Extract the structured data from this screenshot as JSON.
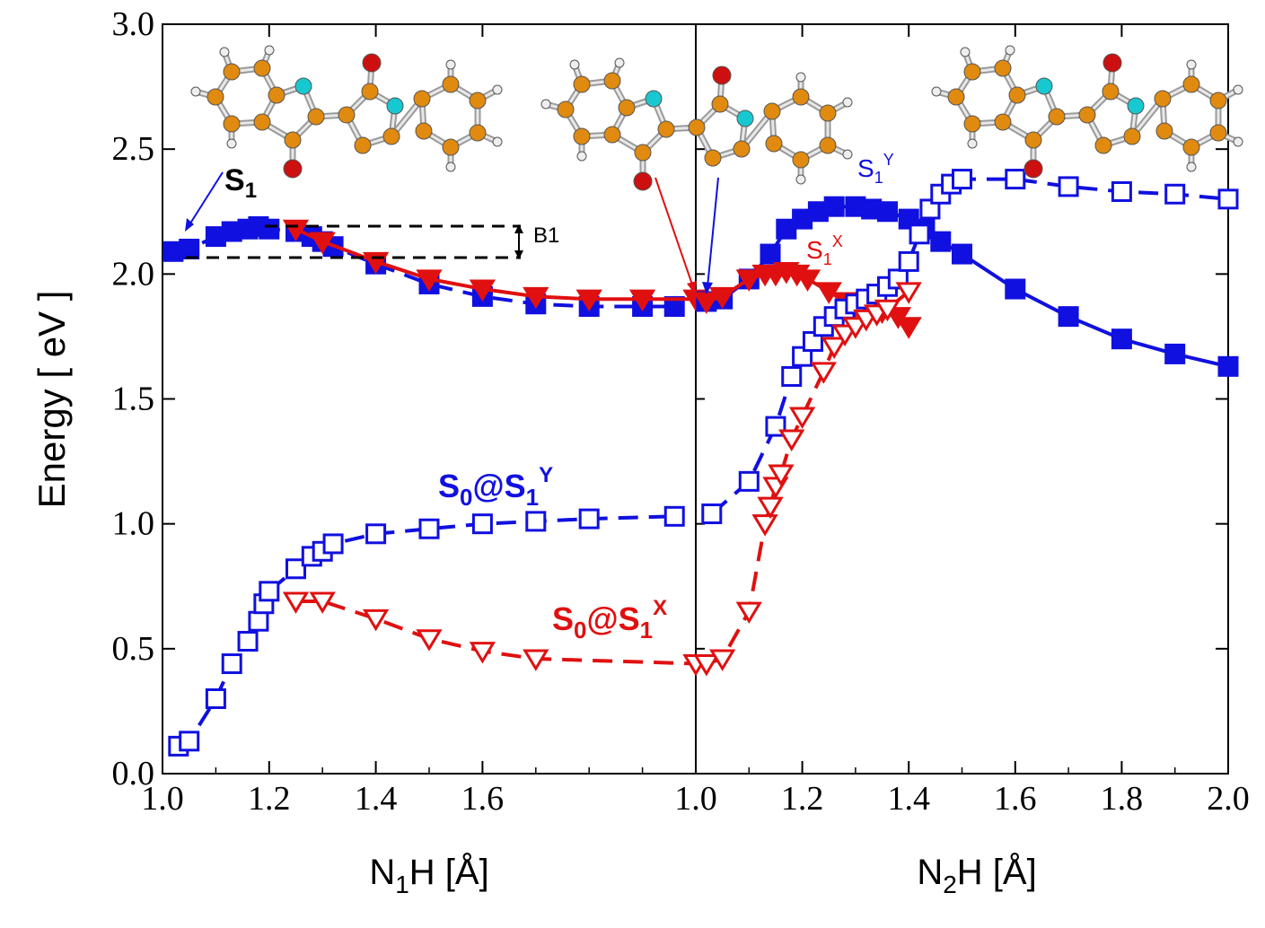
{
  "chart_data": {
    "type": "line",
    "ylabel": "Energy [ eV ]",
    "ylim": [
      0.0,
      3.0
    ],
    "yticks": [
      "0.0",
      "0.5",
      "1.0",
      "1.5",
      "2.0",
      "2.5",
      "3.0"
    ],
    "panels": [
      {
        "name": "left",
        "xlabel_main": "N",
        "xlabel_sub": "1",
        "xlabel_rest": "H [Å]",
        "xlim": [
          1.0,
          2.0
        ],
        "xticks": [
          "1.0",
          "1.2",
          "1.4",
          "1.6"
        ],
        "series": [
          {
            "name": "S1 (Y)",
            "color": "#1010e0",
            "marker": "square",
            "filled": true,
            "dash": true,
            "x": [
              1.02,
              1.05,
              1.1,
              1.13,
              1.16,
              1.18,
              1.2,
              1.25,
              1.28,
              1.3,
              1.32,
              1.4,
              1.5,
              1.6,
              1.7,
              1.8,
              1.9,
              1.96
            ],
            "y": [
              2.09,
              2.1,
              2.15,
              2.17,
              2.18,
              2.19,
              2.18,
              2.17,
              2.15,
              2.13,
              2.11,
              2.04,
              1.96,
              1.91,
              1.88,
              1.87,
              1.87,
              1.87
            ]
          },
          {
            "name": "S1 (X)",
            "color": "#e01010",
            "marker": "triangle",
            "filled": true,
            "dash": false,
            "x": [
              1.25,
              1.3,
              1.4,
              1.5,
              1.6,
              1.7,
              1.8,
              1.9,
              2.0
            ],
            "y": [
              2.18,
              2.13,
              2.05,
              1.98,
              1.94,
              1.91,
              1.9,
              1.9,
              1.9
            ]
          },
          {
            "name": "S0@S1Y",
            "color": "#1010e0",
            "marker": "square",
            "filled": false,
            "dash": true,
            "x": [
              1.03,
              1.05,
              1.1,
              1.13,
              1.16,
              1.18,
              1.19,
              1.2,
              1.25,
              1.28,
              1.3,
              1.32,
              1.4,
              1.5,
              1.6,
              1.7,
              1.8,
              1.96
            ],
            "y": [
              0.11,
              0.13,
              0.3,
              0.44,
              0.53,
              0.61,
              0.68,
              0.73,
              0.82,
              0.87,
              0.89,
              0.92,
              0.96,
              0.98,
              1.0,
              1.01,
              1.02,
              1.03
            ]
          },
          {
            "name": "S0@S1X",
            "color": "#e01010",
            "marker": "triangle",
            "filled": false,
            "dash": true,
            "x": [
              1.25,
              1.3,
              1.4,
              1.5,
              1.6,
              1.7,
              2.0
            ],
            "y": [
              0.69,
              0.69,
              0.62,
              0.54,
              0.49,
              0.46,
              0.44
            ]
          }
        ]
      },
      {
        "name": "right",
        "xlabel_main": "N",
        "xlabel_sub": "2",
        "xlabel_rest": "H [Å]",
        "xlim": [
          1.0,
          2.0
        ],
        "xticks": [
          "1.0",
          "1.2",
          "1.4",
          "1.6",
          "1.8",
          "2.0"
        ],
        "series": [
          {
            "name": "S1Y",
            "color": "#1010e0",
            "marker": "square",
            "filled": true,
            "dash": false,
            "x": [
              1.02,
              1.05,
              1.1,
              1.14,
              1.17,
              1.2,
              1.23,
              1.26,
              1.3,
              1.33,
              1.36,
              1.4,
              1.43,
              1.46,
              1.5,
              1.6,
              1.7,
              1.8,
              1.9,
              2.0
            ],
            "y": [
              1.89,
              1.9,
              1.98,
              2.08,
              2.18,
              2.22,
              2.25,
              2.27,
              2.27,
              2.26,
              2.25,
              2.22,
              2.18,
              2.13,
              2.08,
              1.94,
              1.83,
              1.74,
              1.68,
              1.63
            ]
          },
          {
            "name": "S1X",
            "color": "#e01010",
            "marker": "triangle",
            "filled": true,
            "dash": false,
            "x": [
              1.02,
              1.05,
              1.1,
              1.13,
              1.15,
              1.17,
              1.19,
              1.21,
              1.25,
              1.28,
              1.3,
              1.32,
              1.35,
              1.38,
              1.4
            ],
            "y": [
              1.89,
              1.91,
              1.98,
              2.0,
              2.0,
              2.01,
              2.0,
              1.98,
              1.93,
              1.89,
              1.87,
              1.86,
              1.85,
              1.83,
              1.79
            ]
          },
          {
            "name": "S0@S1Y right",
            "color": "#1010e0",
            "marker": "square",
            "filled": false,
            "dash": true,
            "x": [
              1.03,
              1.1,
              1.15,
              1.18,
              1.2,
              1.22,
              1.24,
              1.26,
              1.28,
              1.3,
              1.32,
              1.34,
              1.36,
              1.38,
              1.4,
              1.42,
              1.44,
              1.46,
              1.48,
              1.5,
              1.6,
              1.7,
              1.8,
              1.9,
              2.0
            ],
            "y": [
              1.04,
              1.17,
              1.39,
              1.59,
              1.67,
              1.73,
              1.79,
              1.83,
              1.86,
              1.88,
              1.9,
              1.92,
              1.95,
              1.98,
              2.05,
              2.16,
              2.26,
              2.32,
              2.36,
              2.38,
              2.38,
              2.35,
              2.33,
              2.32,
              2.3
            ]
          },
          {
            "name": "S0@S1X right",
            "color": "#e01010",
            "marker": "triangle",
            "filled": false,
            "dash": true,
            "x": [
              1.02,
              1.05,
              1.1,
              1.13,
              1.14,
              1.15,
              1.16,
              1.18,
              1.2,
              1.24,
              1.26,
              1.28,
              1.3,
              1.32,
              1.34,
              1.36,
              1.4
            ],
            "y": [
              0.44,
              0.46,
              0.65,
              1.0,
              1.07,
              1.15,
              1.2,
              1.34,
              1.43,
              1.61,
              1.71,
              1.76,
              1.79,
              1.82,
              1.84,
              1.86,
              1.93
            ]
          }
        ]
      }
    ],
    "annotations": {
      "s1_left": {
        "main": "S",
        "sub": "1"
      },
      "b1": "B1",
      "s1y": {
        "main": "S",
        "sub": "1",
        "sup": "Y"
      },
      "s1x": {
        "main": "S",
        "sub": "1",
        "sup": "X"
      },
      "s0_s1y": {
        "main": "S",
        "sub0": "0",
        "at": "@S",
        "sub1": "1",
        "sup": "Y"
      },
      "s0_s1x": {
        "main": "S",
        "sub0": "0",
        "at": "@S",
        "sub1": "1",
        "sup": "X"
      }
    }
  }
}
